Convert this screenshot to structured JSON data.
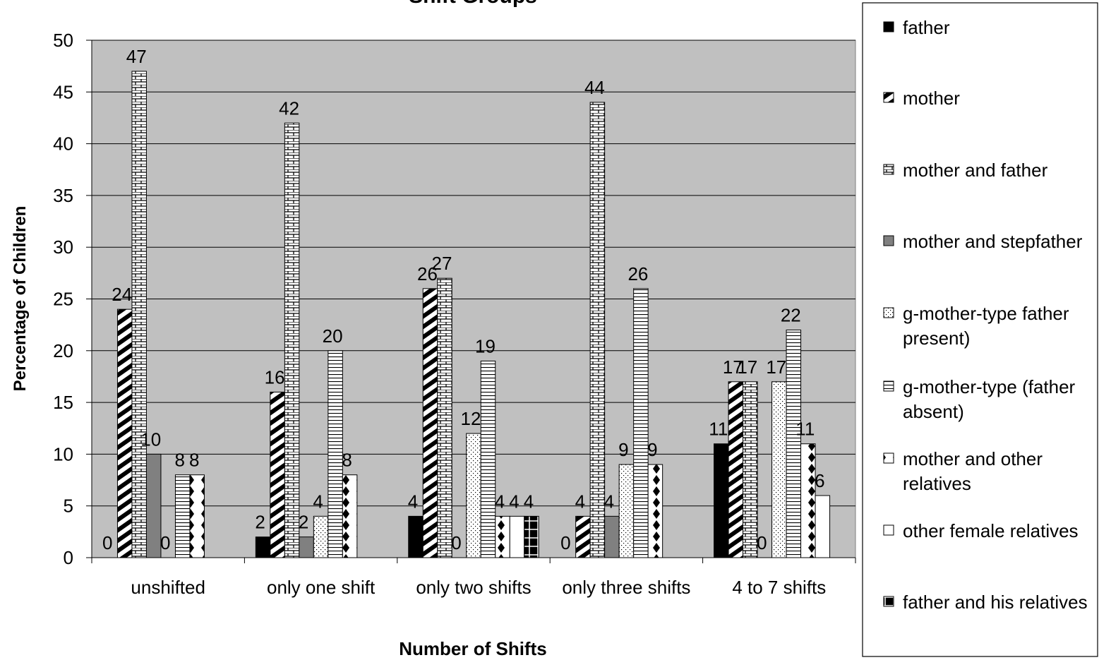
{
  "chart_data": {
    "type": "bar",
    "title": "Shift Groups",
    "x_label": "Number of Shifts",
    "y_label": "Percentage of Children",
    "categories": [
      "unshifted",
      "only one shift",
      "only two shifts",
      "only three shifts",
      "4 to 7 shifts"
    ],
    "series": [
      {
        "name": "father",
        "color": "#000000",
        "pattern": "solid",
        "values": [
          0,
          2,
          4,
          0,
          11
        ]
      },
      {
        "name": "mother",
        "color": "#000000",
        "pattern": "diagonal",
        "values": [
          24,
          16,
          26,
          4,
          17
        ]
      },
      {
        "name": "mother and father",
        "color": "#000000",
        "pattern": "brick",
        "values": [
          47,
          42,
          27,
          44,
          17
        ]
      },
      {
        "name": "mother and stepfather",
        "color": "#808080",
        "pattern": "solid",
        "values": [
          10,
          2,
          0,
          4,
          0
        ]
      },
      {
        "name": "g-mother-type father present)",
        "color": "#000000",
        "pattern": "dots",
        "values": [
          0,
          4,
          12,
          9,
          17
        ]
      },
      {
        "name": "g-mother-type (father absent)",
        "color": "#000000",
        "pattern": "hlines",
        "values": [
          8,
          20,
          19,
          26,
          22
        ]
      },
      {
        "name": "mother and other relatives",
        "color": "#000000",
        "pattern": "diamonds",
        "values": [
          8,
          8,
          4,
          9,
          11
        ]
      },
      {
        "name": "other female relatives",
        "color": "#ffffff",
        "pattern": "solid",
        "values": [
          null,
          null,
          4,
          null,
          6
        ]
      },
      {
        "name": "father and his relatives",
        "color": "#000000",
        "pattern": "cross",
        "values": [
          null,
          null,
          4,
          null,
          null
        ]
      }
    ],
    "ylim": [
      0,
      50
    ],
    "yticks": [
      0,
      5,
      10,
      15,
      20,
      25,
      30,
      35,
      40,
      45,
      50
    ],
    "grid": true,
    "legend": "right"
  }
}
